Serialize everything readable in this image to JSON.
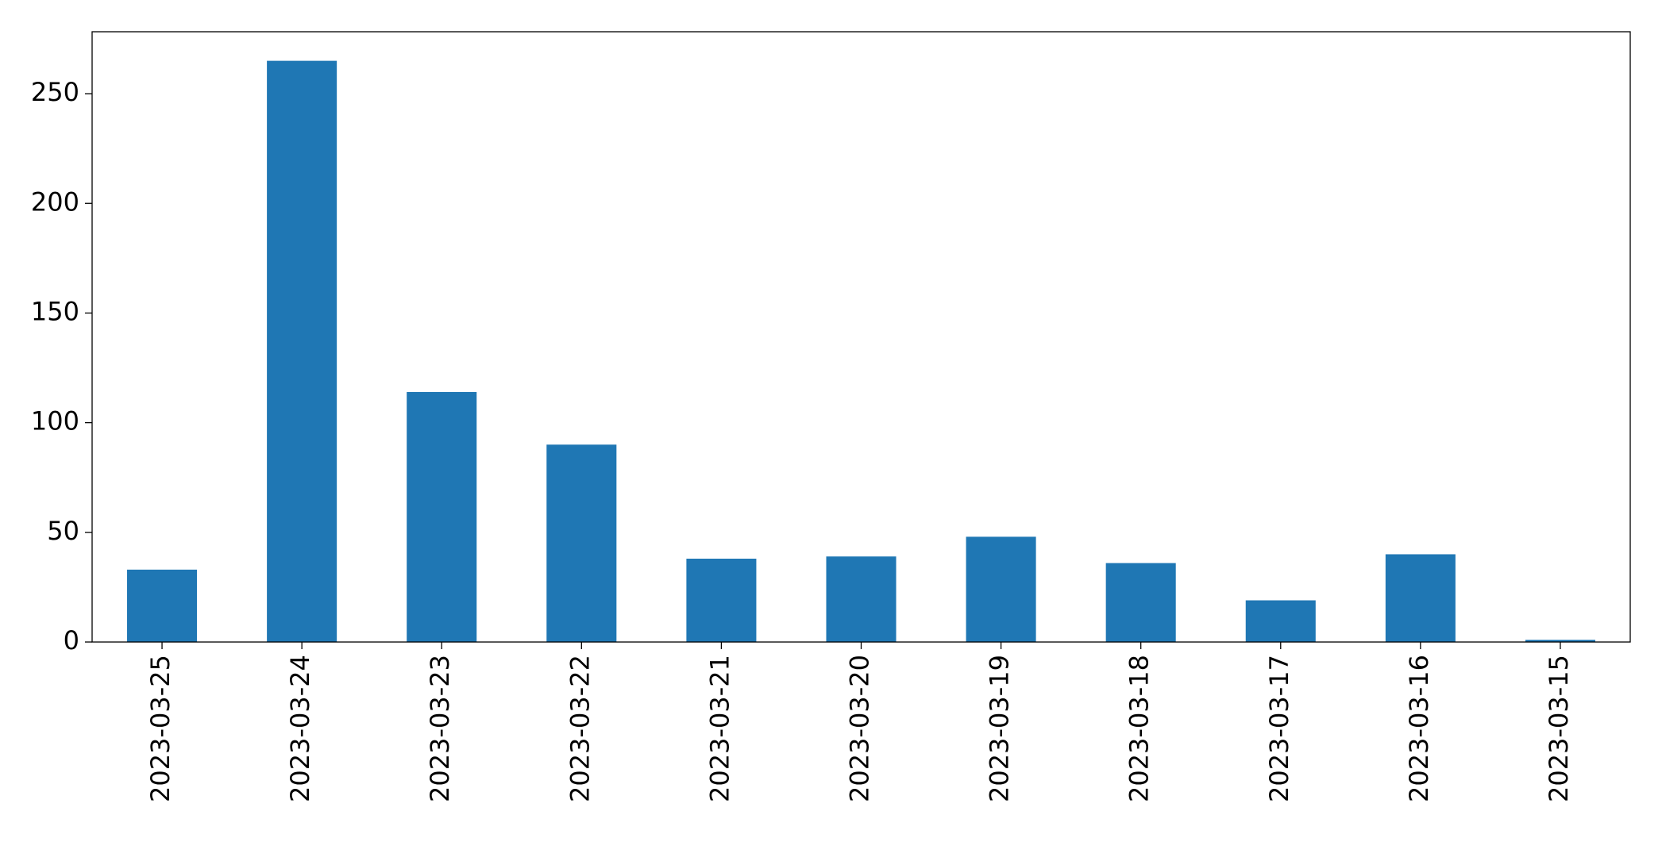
{
  "chart_data": {
    "type": "bar",
    "categories": [
      "2023-03-25",
      "2023-03-24",
      "2023-03-23",
      "2023-03-22",
      "2023-03-21",
      "2023-03-20",
      "2023-03-19",
      "2023-03-18",
      "2023-03-17",
      "2023-03-16",
      "2023-03-15"
    ],
    "values": [
      33,
      265,
      114,
      90,
      38,
      39,
      48,
      36,
      19,
      40,
      1
    ],
    "color": "#1f77b4",
    "ylim": [
      0,
      278.25
    ],
    "yticks": [
      0,
      50,
      100,
      150,
      200,
      250
    ],
    "grid": false
  }
}
